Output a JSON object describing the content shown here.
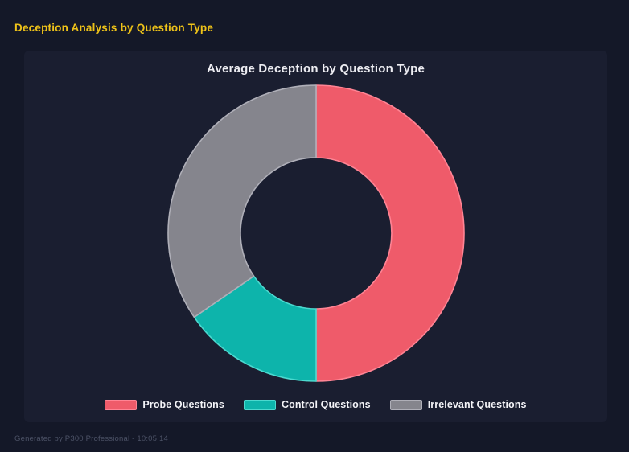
{
  "header": {
    "title": "Deception Analysis by Question Type"
  },
  "footer": {
    "text": "Generated by P300 Professional - 10:05:14"
  },
  "colors": {
    "page_background": "#141828",
    "panel_background": "#1a1e30",
    "header_accent": "#efc319",
    "title_text": "#ededf2",
    "legend_text": "#f3f3f7",
    "footer_text": "#4c5266"
  },
  "chart_data": {
    "type": "pie",
    "subtype": "doughnut",
    "title": "Average Deception by Question Type",
    "categories": [
      "Probe Questions",
      "Control Questions",
      "Irrelevant Questions"
    ],
    "values_percent": [
      50.0,
      15.4,
      34.6
    ],
    "slice_colors": [
      "#ef5b6a",
      "#0db4ab",
      "#85858d"
    ],
    "slice_border_colors": [
      "#ff8494",
      "#4bd9cf",
      "#afafb8"
    ],
    "start_angle_deg": 0,
    "cutout_percent": 51,
    "legend_position": "bottom",
    "grid": false
  }
}
